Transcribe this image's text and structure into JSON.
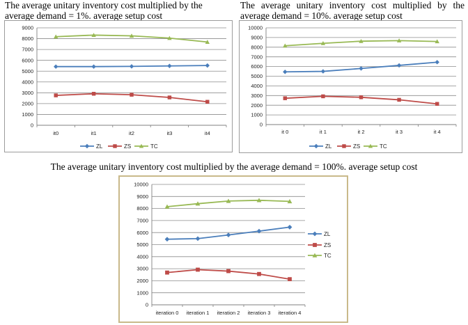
{
  "captions": [
    "The average unitary inventory cost multiplied by the average demand = 1%. average setup cost",
    "The average unitary inventory cost multiplied by the average demand = 10%. average setup cost",
    "The average unitary inventory cost multiplied by the average demand = 100%. average setup cost"
  ],
  "colors": {
    "ZL": "#4a7ebb",
    "ZS": "#be4b48",
    "TC": "#98b954",
    "grid": "#8c8c8c",
    "frame3_border": "#c9b98a"
  },
  "chart_data": [
    {
      "type": "line",
      "title": "The average unitary inventory cost multiplied by the average demand = 1%. average setup cost",
      "categories": [
        "it0",
        "it1",
        "it2",
        "it3",
        "it4"
      ],
      "ylim": [
        0,
        9000
      ],
      "yticks": [
        0,
        1000,
        2000,
        3000,
        4000,
        5000,
        6000,
        7000,
        8000,
        9000
      ],
      "grid": true,
      "legend_position": "bottom",
      "series": [
        {
          "name": "ZL",
          "marker": "diamond",
          "values": [
            5420,
            5420,
            5440,
            5480,
            5520
          ]
        },
        {
          "name": "ZS",
          "marker": "square",
          "values": [
            2760,
            2910,
            2820,
            2570,
            2170
          ]
        },
        {
          "name": "TC",
          "marker": "triangle",
          "values": [
            8180,
            8330,
            8260,
            8050,
            7690
          ]
        }
      ]
    },
    {
      "type": "line",
      "title": "The average unitary inventory cost multiplied by the average demand = 10%. average setup cost",
      "categories": [
        "it 0",
        "it 1",
        "it 2",
        "it 3",
        "it 4"
      ],
      "ylim": [
        0,
        10000
      ],
      "yticks": [
        0,
        1000,
        2000,
        3000,
        4000,
        5000,
        6000,
        7000,
        8000,
        9000,
        10000
      ],
      "grid": true,
      "legend_position": "bottom",
      "series": [
        {
          "name": "ZL",
          "marker": "diamond",
          "values": [
            5450,
            5500,
            5800,
            6120,
            6450
          ]
        },
        {
          "name": "ZS",
          "marker": "square",
          "values": [
            2720,
            2920,
            2820,
            2560,
            2140
          ]
        },
        {
          "name": "TC",
          "marker": "triangle",
          "values": [
            8150,
            8400,
            8620,
            8680,
            8590
          ]
        }
      ]
    },
    {
      "type": "line",
      "title": "The average unitary inventory cost multiplied by the average demand = 100%. average setup cost",
      "categories": [
        "iteration 0",
        "iteration 1",
        "iteration 2",
        "iteration 3",
        "iteration 4"
      ],
      "ylim": [
        0,
        10000
      ],
      "yticks": [
        0,
        1000,
        2000,
        3000,
        4000,
        5000,
        6000,
        7000,
        8000,
        9000,
        10000
      ],
      "grid": true,
      "legend_position": "right",
      "series": [
        {
          "name": "ZL",
          "marker": "diamond",
          "values": [
            5450,
            5500,
            5800,
            6120,
            6450
          ]
        },
        {
          "name": "ZS",
          "marker": "square",
          "values": [
            2680,
            2920,
            2800,
            2560,
            2130
          ]
        },
        {
          "name": "TC",
          "marker": "triangle",
          "values": [
            8150,
            8400,
            8620,
            8680,
            8590
          ]
        }
      ]
    }
  ]
}
